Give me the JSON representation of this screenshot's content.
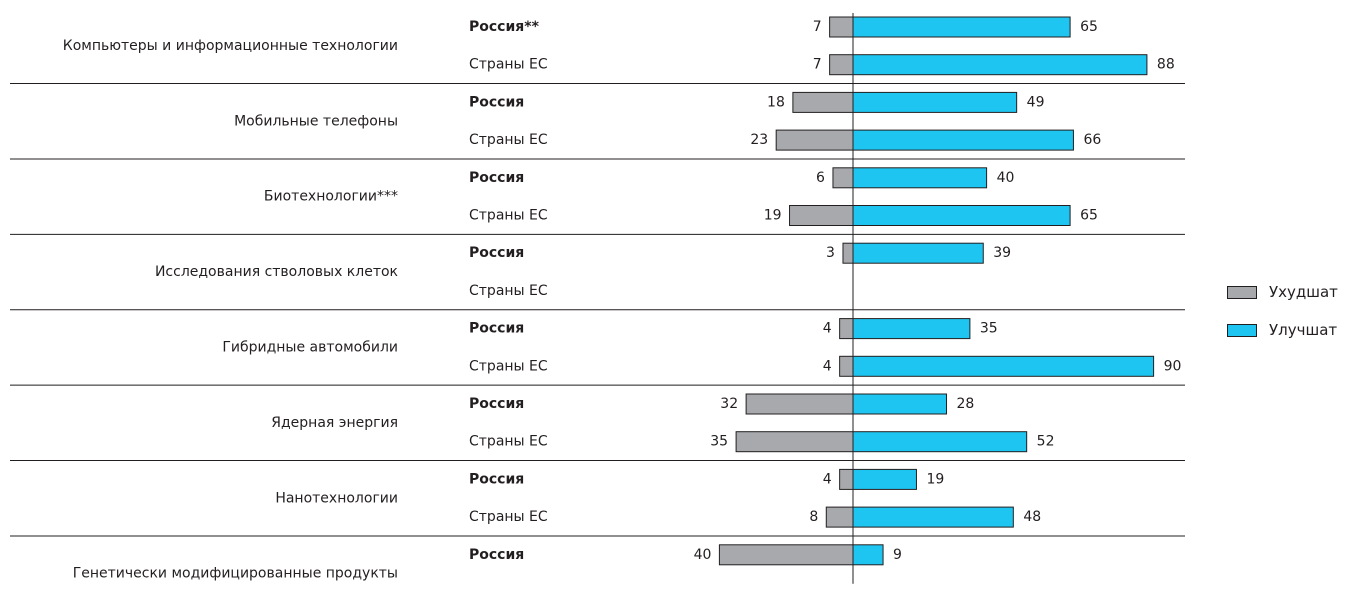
{
  "chart_data": {
    "type": "bar",
    "orientation": "horizontal-diverging",
    "legend": {
      "placement": "right",
      "items": [
        {
          "name": "Ухудшат",
          "color": "#a7a9ac"
        },
        {
          "name": "Улучшат",
          "color": "#1ec5f0"
        }
      ]
    },
    "categories": [
      {
        "label": "Компьютеры и информационные технологии",
        "rows": [
          {
            "group": "Россия**",
            "bold": true,
            "worse": 7,
            "better": 65
          },
          {
            "group": "Страны ЕС",
            "bold": false,
            "worse": 7,
            "better": 88
          }
        ]
      },
      {
        "label": "Мобильные телефоны",
        "rows": [
          {
            "group": "Россия",
            "bold": true,
            "worse": 18,
            "better": 49
          },
          {
            "group": "Страны ЕС",
            "bold": false,
            "worse": 23,
            "better": 66
          }
        ]
      },
      {
        "label": "Биотехнологии***",
        "rows": [
          {
            "group": "Россия",
            "bold": true,
            "worse": 6,
            "better": 40
          },
          {
            "group": "Страны ЕС",
            "bold": false,
            "worse": 19,
            "better": 65
          }
        ]
      },
      {
        "label": "Исследования стволовых клеток",
        "rows": [
          {
            "group": "Россия",
            "bold": true,
            "worse": 3,
            "better": 39
          },
          {
            "group": "Страны ЕС",
            "bold": false,
            "worse": null,
            "better": null
          }
        ]
      },
      {
        "label": "Гибридные автомобили",
        "rows": [
          {
            "group": "Россия",
            "bold": true,
            "worse": 4,
            "better": 35
          },
          {
            "group": "Страны ЕС",
            "bold": false,
            "worse": 4,
            "better": 90
          }
        ]
      },
      {
        "label": "Ядерная энергия",
        "rows": [
          {
            "group": "Россия",
            "bold": true,
            "worse": 32,
            "better": 28
          },
          {
            "group": "Страны ЕС",
            "bold": false,
            "worse": 35,
            "better": 52
          }
        ]
      },
      {
        "label": "Нанотехнологии",
        "rows": [
          {
            "group": "Россия",
            "bold": true,
            "worse": 4,
            "better": 19
          },
          {
            "group": "Страны ЕС",
            "bold": false,
            "worse": 8,
            "better": 48
          }
        ]
      },
      {
        "label": "Генетически модифицированные продукты",
        "rows": [
          {
            "group": "Россия",
            "bold": true,
            "worse": 40,
            "better": 9
          }
        ]
      }
    ]
  }
}
